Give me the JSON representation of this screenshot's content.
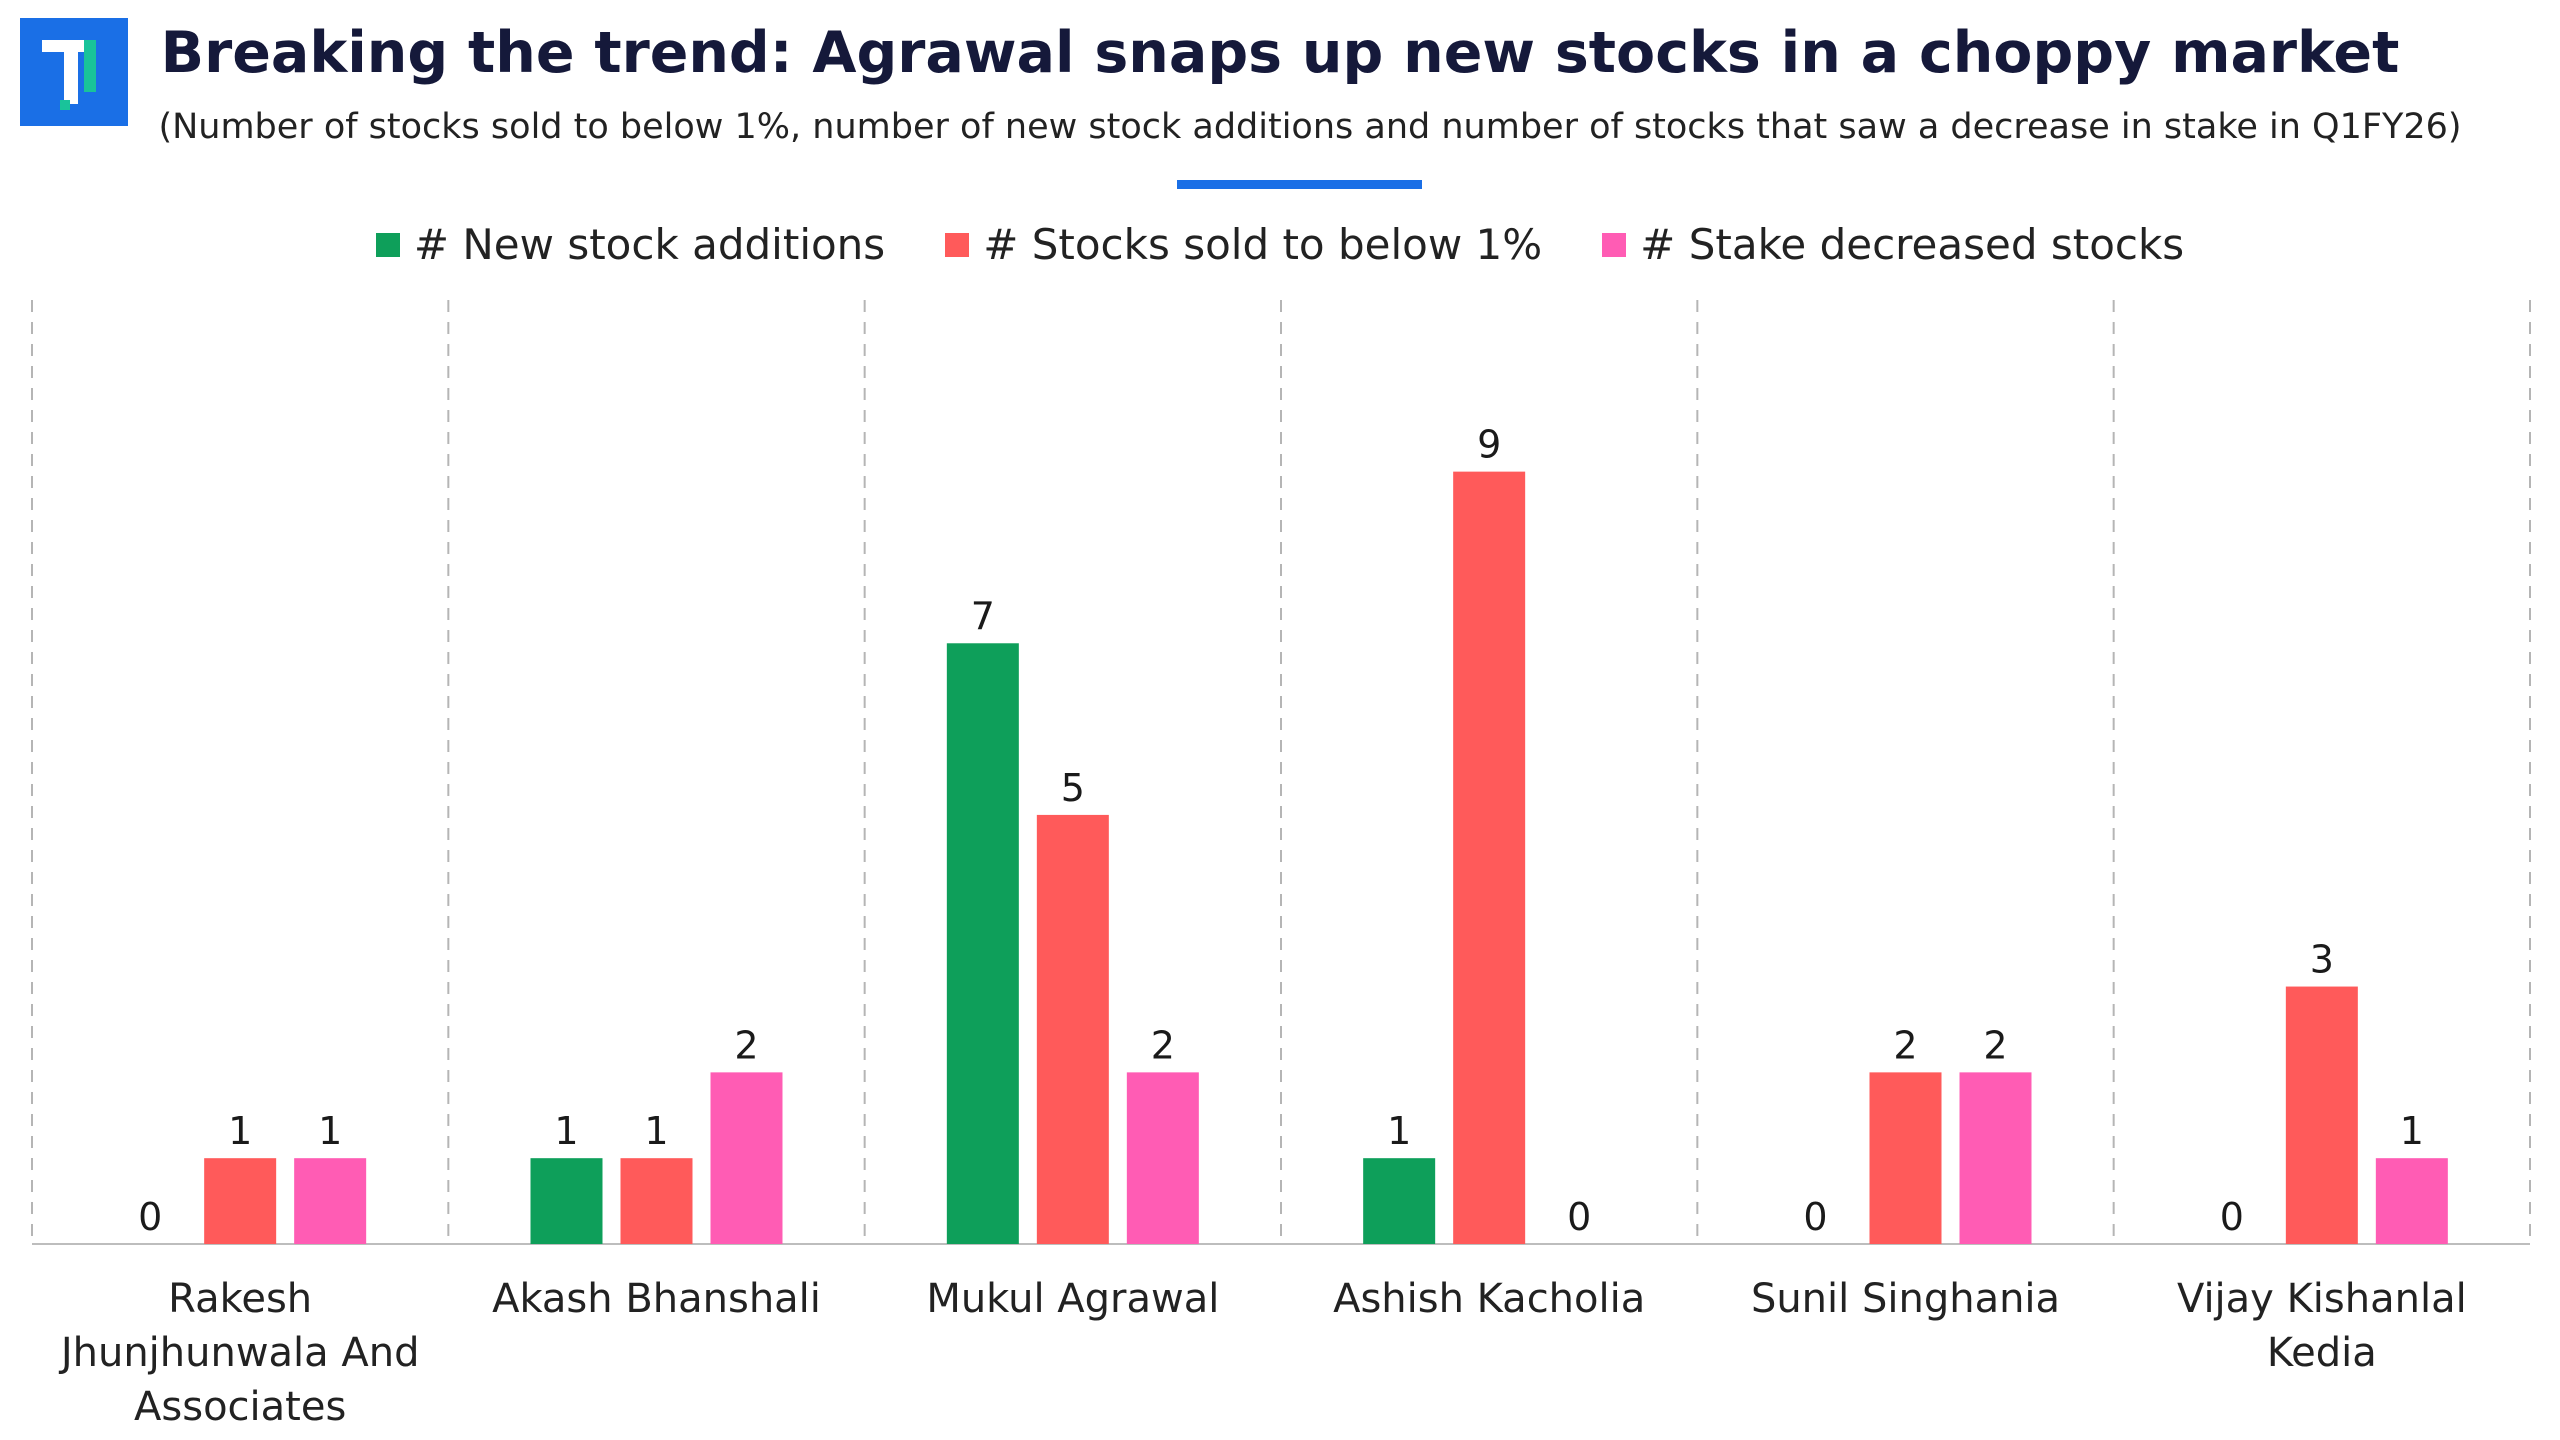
{
  "header": {
    "title": "Breaking the trend: Agrawal snaps up new stocks in a choppy market",
    "subtitle": "(Number of stocks sold to below 1%, number of new stock additions and number of stocks that saw a decrease in stake in Q1FY26)"
  },
  "logo": {
    "icon": "brand-logo-icon"
  },
  "colors": {
    "logo_bg": "#1a6fe6",
    "logo_accent": "#19c39a",
    "accent_bar": "#1a6fe6",
    "new_additions": "#0e9f5a",
    "sold_below_1": "#ff5a5a",
    "stake_decreased": "#ff5cb4"
  },
  "chart_data": {
    "type": "bar",
    "categories": [
      [
        "Rakesh",
        "Jhunjhunwala And",
        "Associates"
      ],
      [
        "Akash Bhanshali"
      ],
      [
        "Mukul Agrawal"
      ],
      [
        "Ashish Kacholia"
      ],
      [
        "Sunil Singhania"
      ],
      [
        "Vijay Kishanlal",
        "Kedia"
      ]
    ],
    "series": [
      {
        "name": "# New stock additions",
        "color": "#0e9f5a",
        "values": [
          0,
          1,
          7,
          1,
          0,
          0
        ]
      },
      {
        "name": "# Stocks sold to below 1%",
        "color": "#ff5a5a",
        "values": [
          1,
          1,
          5,
          9,
          2,
          3
        ]
      },
      {
        "name": "# Stake decreased stocks",
        "color": "#ff5cb4",
        "values": [
          1,
          2,
          2,
          0,
          2,
          1
        ]
      }
    ],
    "ylim": [
      0,
      11
    ],
    "grid": "vertical dashed separators",
    "legend": "top-center",
    "data_labels": true
  }
}
